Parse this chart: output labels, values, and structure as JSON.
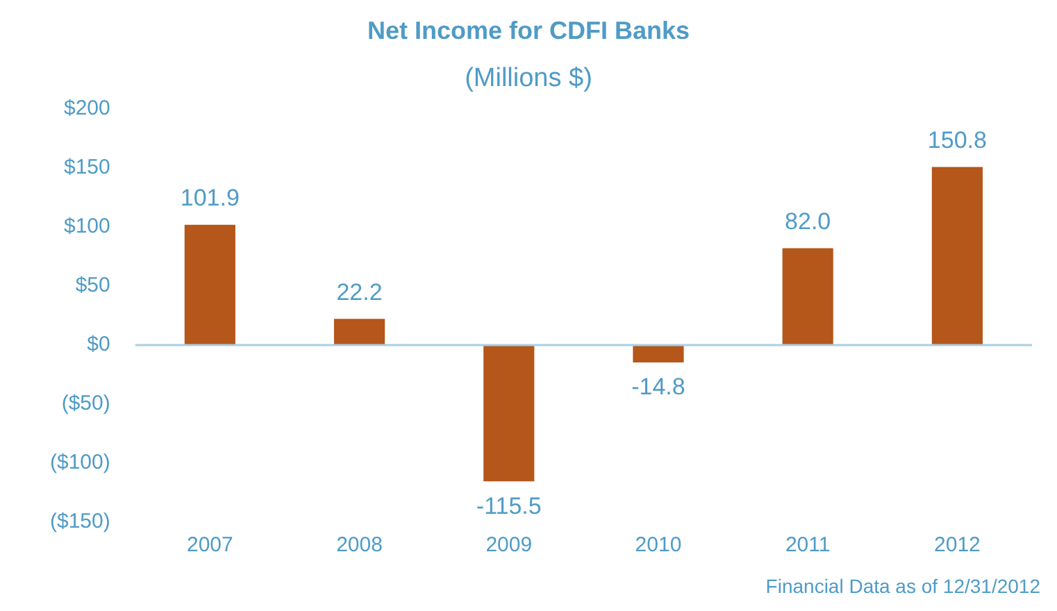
{
  "chart_data": {
    "type": "bar",
    "title": "Net Income for CDFI Banks",
    "subtitle": "(Millions $)",
    "categories": [
      "2007",
      "2008",
      "2009",
      "2010",
      "2011",
      "2012"
    ],
    "values": [
      101.9,
      22.2,
      -115.5,
      -14.8,
      82.0,
      150.8
    ],
    "value_labels": [
      "101.9",
      "22.2",
      "-115.5",
      "-14.8",
      "82.0",
      "150.8"
    ],
    "color": "#b5561b",
    "ylim": [
      -150,
      200
    ],
    "yticks": [
      {
        "value": -150,
        "label": "($150)"
      },
      {
        "value": -100,
        "label": "($100)"
      },
      {
        "value": -50,
        "label": "($50)"
      },
      {
        "value": 0,
        "label": "$0"
      },
      {
        "value": 50,
        "label": "$50"
      },
      {
        "value": 100,
        "label": "$100"
      },
      {
        "value": 150,
        "label": "$150"
      },
      {
        "value": 200,
        "label": "$200"
      }
    ],
    "grid": false,
    "legend": false,
    "ref_lines": [
      {
        "axis": "y",
        "value": 0,
        "color": "#a9cfe3"
      }
    ],
    "annotations": [
      "Financial Data as of 12/31/2012"
    ]
  }
}
